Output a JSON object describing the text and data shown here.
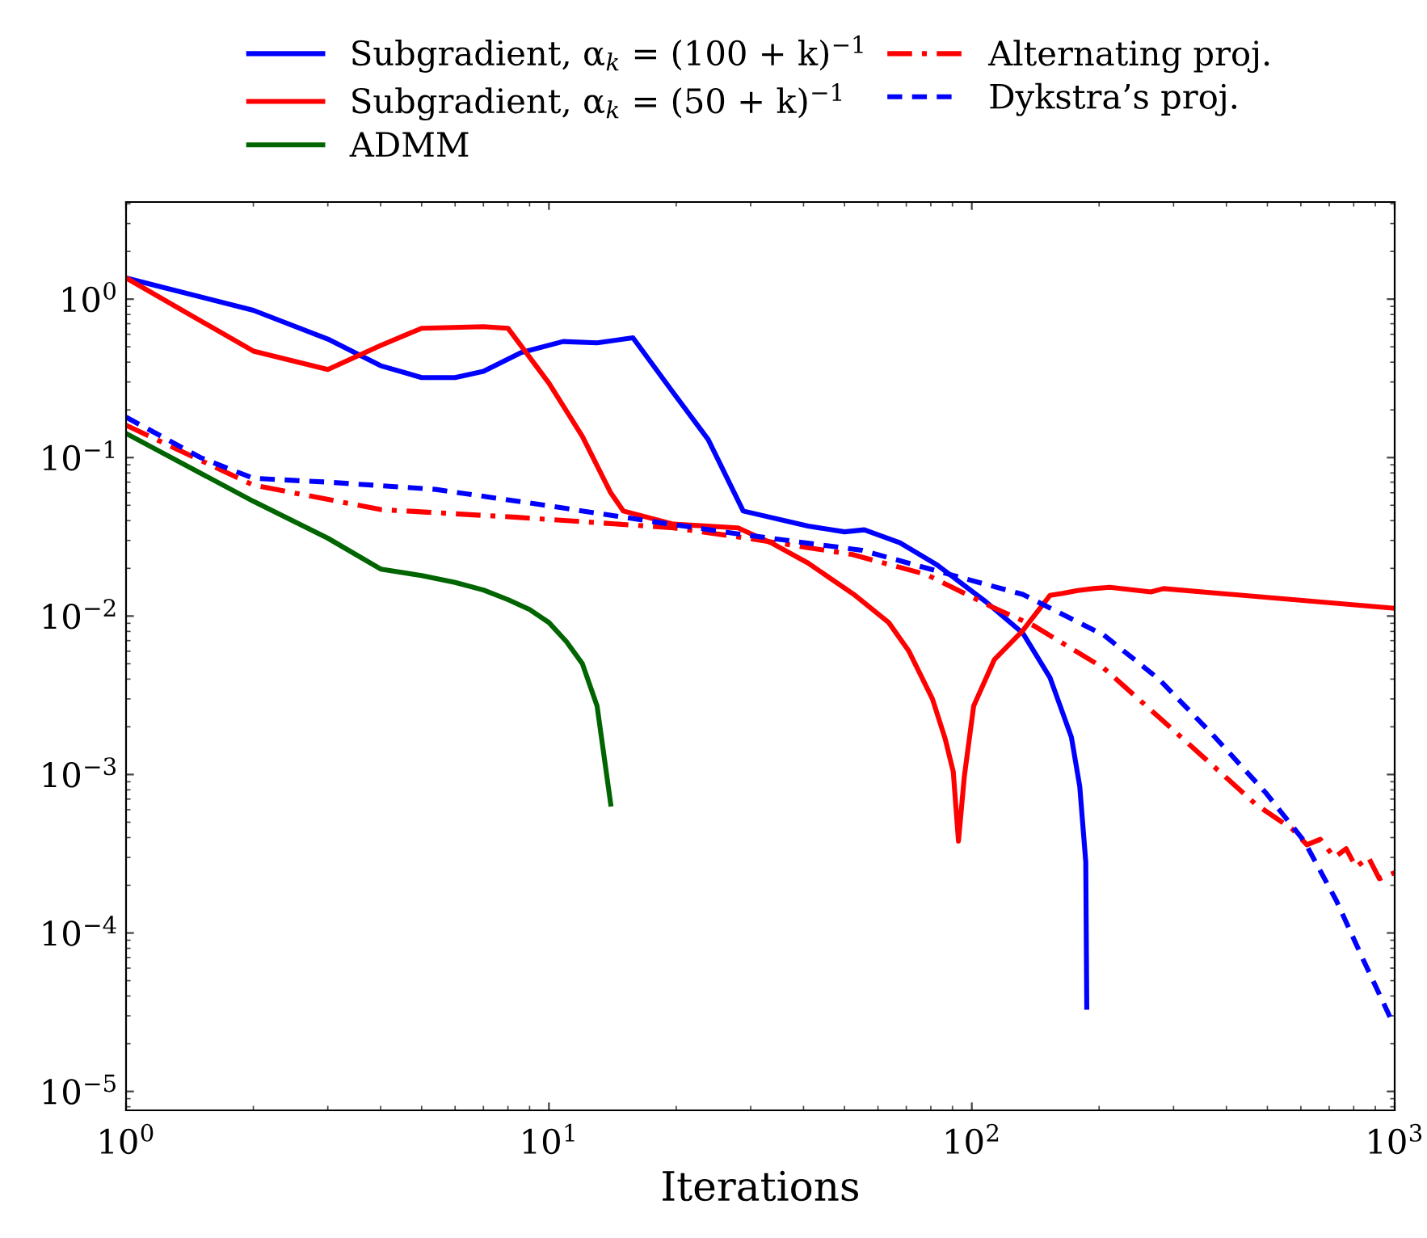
{
  "chart_data": {
    "type": "line",
    "xlabel": "Iterations",
    "log": "xy",
    "grid": false,
    "legend": "top",
    "marker": "none",
    "xlim": [
      1,
      1000
    ],
    "ylim": [
      7.6e-06,
      4.1
    ],
    "xticks": [
      {
        "value": 1,
        "label": "10$^{0}$"
      },
      {
        "value": 10,
        "label": "10$^{1}$"
      },
      {
        "value": 100,
        "label": "10$^{2}$"
      },
      {
        "value": 1000,
        "label": "10$^{3}$"
      }
    ],
    "yticks": [
      {
        "value": 1e-05,
        "label": "10$^{−5}$"
      },
      {
        "value": 0.0001,
        "label": "10$^{−4}$"
      },
      {
        "value": 0.001,
        "label": "10$^{−3}$"
      },
      {
        "value": 0.01,
        "label": "10$^{−2}$"
      },
      {
        "value": 0.1,
        "label": "10$^{−1}$"
      },
      {
        "value": 1,
        "label": "10$^{0}$"
      }
    ],
    "series": [
      {
        "name": "Subgradient, α$_{k}$ = (100 + k)$^{−1}$",
        "color": "#0000ff",
        "line_style": "solid",
        "x": [
          1,
          2,
          3,
          4,
          5,
          6,
          7,
          8.6,
          10.8,
          13,
          15.8,
          19.7,
          23.8,
          28.8,
          41,
          50,
          55.7,
          67.6,
          82.8,
          108,
          132,
          153,
          172,
          180,
          186,
          187
        ],
        "values": [
          1.36,
          0.85,
          0.56,
          0.38,
          0.32,
          0.32,
          0.35,
          0.46,
          0.54,
          0.53,
          0.57,
          0.256,
          0.13,
          0.046,
          0.037,
          0.034,
          0.035,
          0.029,
          0.021,
          0.0123,
          0.0078,
          0.0041,
          0.00172,
          0.00084,
          0.00028,
          3.4e-05
        ]
      },
      {
        "name": "Subgradient, α$_{k}$ = (50 + k)$^{−1}$",
        "color": "#ff0000",
        "line_style": "solid",
        "x": [
          1,
          2,
          3,
          4,
          5,
          7,
          8,
          10,
          12,
          14,
          15,
          19.7,
          28,
          33.5,
          41,
          53,
          63.6,
          71,
          80.7,
          86.5,
          90.4,
          93,
          96,
          101,
          113,
          132,
          153,
          164,
          178,
          194,
          212,
          265,
          284,
          1000
        ],
        "values": [
          1.36,
          0.47,
          0.36,
          0.51,
          0.655,
          0.67,
          0.655,
          0.295,
          0.136,
          0.06,
          0.046,
          0.038,
          0.036,
          0.029,
          0.0216,
          0.0135,
          0.0091,
          0.006,
          0.003,
          0.00168,
          0.00104,
          0.00038,
          0.00097,
          0.0027,
          0.0053,
          0.0081,
          0.0135,
          0.0139,
          0.0145,
          0.0149,
          0.0152,
          0.0142,
          0.0149,
          0.0112
        ]
      },
      {
        "name": "ADMM",
        "color": "#006400",
        "line_style": "solid",
        "x": [
          1,
          2,
          3,
          4,
          5,
          6,
          7,
          8,
          9,
          10,
          11,
          12,
          13,
          14
        ],
        "values": [
          0.142,
          0.053,
          0.031,
          0.0198,
          0.018,
          0.0163,
          0.0146,
          0.0127,
          0.011,
          0.0091,
          0.0069,
          0.005,
          0.0027,
          0.00065
        ]
      },
      {
        "name": "Alternating proj.",
        "color": "#ff0000",
        "line_style": "dashdot",
        "x": [
          1,
          2,
          4,
          8.4,
          17,
          19.7,
          28,
          52,
          78,
          111,
          140,
          205,
          277,
          370,
          469,
          574,
          620,
          667,
          720,
          768,
          810,
          867,
          920,
          1000
        ],
        "values": [
          0.16,
          0.067,
          0.047,
          0.042,
          0.037,
          0.036,
          0.0316,
          0.0245,
          0.0183,
          0.0115,
          0.0087,
          0.0047,
          0.0023,
          0.00115,
          0.00065,
          0.00045,
          0.00036,
          0.00039,
          0.0003,
          0.00034,
          0.00026,
          0.0003,
          0.00022,
          0.00024
        ]
      },
      {
        "name": "Dykstra’s proj.",
        "color": "#0000ff",
        "line_style": "dashed",
        "x": [
          1,
          1.5,
          2,
          3,
          5.4,
          9.8,
          17,
          28,
          55,
          88,
          132,
          205,
          277,
          370,
          495,
          611,
          728,
          838,
          990
        ],
        "values": [
          0.18,
          0.1,
          0.074,
          0.07,
          0.063,
          0.05,
          0.04,
          0.033,
          0.026,
          0.0184,
          0.0137,
          0.0076,
          0.004,
          0.0018,
          0.00077,
          0.00038,
          0.00016,
          7e-05,
          2.7e-05
        ]
      }
    ]
  }
}
